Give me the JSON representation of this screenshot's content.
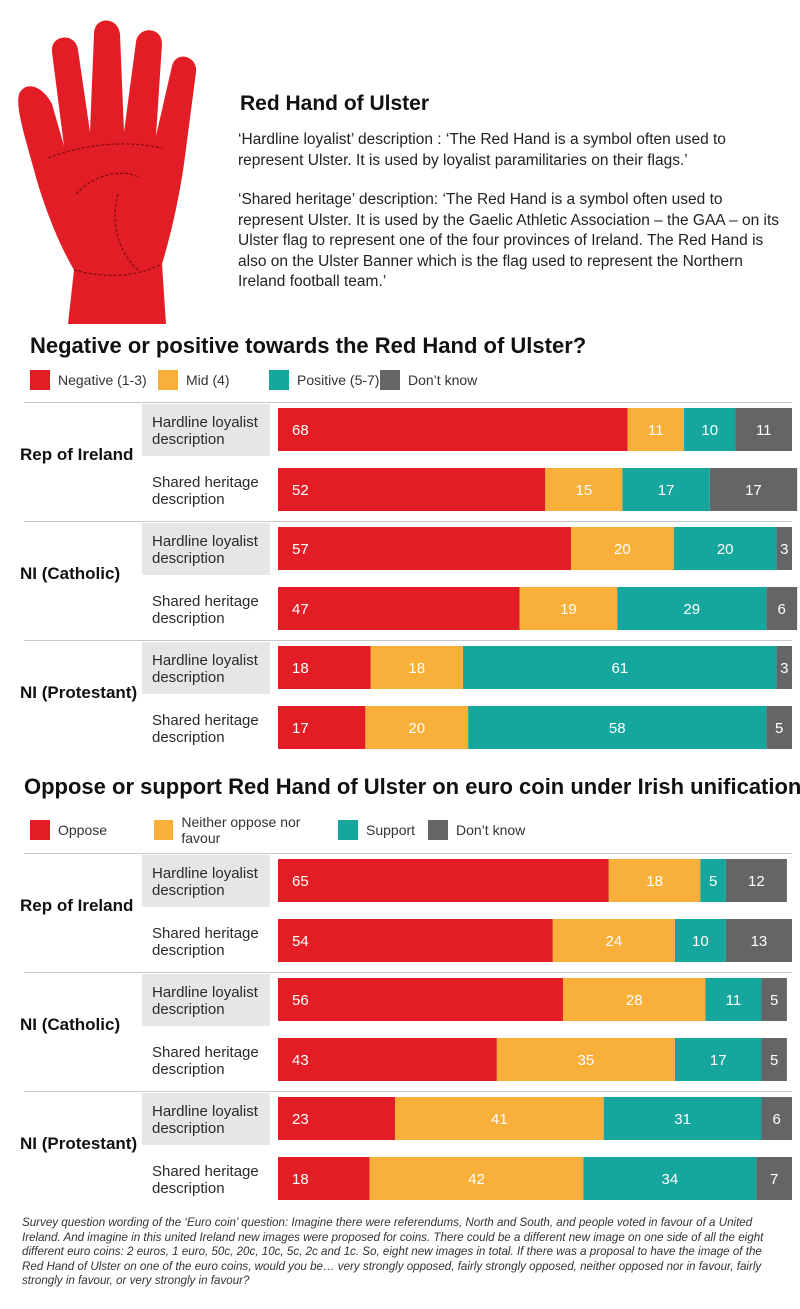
{
  "header": {
    "title": "Red Hand of Ulster",
    "desc_hardline": "‘Hardline loyalist’ description : ‘The Red Hand is a symbol often used to represent Ulster. It is used by loyalist paramilitaries on their flags.’",
    "desc_shared": "‘Shared heritage’ description: ‘The Red Hand is a symbol often used to represent Ulster. It is used by the Gaelic Athletic Association – the GAA – on its Ulster flag to represent one of the four provinces of Ireland. The Red Hand is also on the Ulster Banner which is the flag used to represent the Northern Ireland football team.’"
  },
  "colors": {
    "red": "#e31d25",
    "orange": "#f8b03a",
    "teal": "#15a69e",
    "grey": "#646566",
    "hand": "#e31d25"
  },
  "chart_data": [
    {
      "type": "bar",
      "orientation": "horizontal-stacked",
      "title": "Negative or positive towards the Red Hand of Ulster?",
      "series": [
        {
          "name": "Negative (1-3)",
          "color": "#e31d25"
        },
        {
          "name": "Mid (4)",
          "color": "#f8b03a"
        },
        {
          "name": "Positive (5-7)",
          "color": "#15a69e"
        },
        {
          "name": "Don’t know",
          "color": "#646566"
        }
      ],
      "groups": [
        {
          "label": "Rep of Ireland",
          "rows": [
            {
              "label": [
                "Hardline loyalist",
                "description"
              ],
              "values": [
                68,
                11,
                10,
                11
              ]
            },
            {
              "label": [
                "Shared heritage",
                "description"
              ],
              "values": [
                52,
                15,
                17,
                17
              ]
            }
          ]
        },
        {
          "label": "NI (Catholic)",
          "rows": [
            {
              "label": [
                "Hardline loyalist",
                "description"
              ],
              "values": [
                57,
                20,
                20,
                3
              ]
            },
            {
              "label": [
                "Shared heritage",
                "description"
              ],
              "values": [
                47,
                19,
                29,
                6
              ]
            }
          ]
        },
        {
          "label": "NI (Protestant)",
          "rows": [
            {
              "label": [
                "Hardline loyalist",
                "description"
              ],
              "values": [
                18,
                18,
                61,
                3
              ]
            },
            {
              "label": [
                "Shared heritage",
                "description"
              ],
              "values": [
                17,
                20,
                58,
                5
              ]
            }
          ]
        }
      ],
      "xlim": [
        0,
        100
      ]
    },
    {
      "type": "bar",
      "orientation": "horizontal-stacked",
      "title": "Oppose or support Red Hand of Ulster on euro coin under Irish unification?",
      "series": [
        {
          "name": "Oppose",
          "color": "#e31d25"
        },
        {
          "name": "Neither oppose nor favour",
          "color": "#f8b03a"
        },
        {
          "name": "Support",
          "color": "#15a69e"
        },
        {
          "name": "Don’t know",
          "color": "#646566"
        }
      ],
      "groups": [
        {
          "label": "Rep of Ireland",
          "rows": [
            {
              "label": [
                "Hardline loyalist",
                "description"
              ],
              "values": [
                65,
                18,
                5,
                12
              ]
            },
            {
              "label": [
                "Shared heritage",
                "description"
              ],
              "values": [
                54,
                24,
                10,
                13
              ]
            }
          ]
        },
        {
          "label": "NI (Catholic)",
          "rows": [
            {
              "label": [
                "Hardline loyalist",
                "description"
              ],
              "values": [
                56,
                28,
                11,
                5
              ]
            },
            {
              "label": [
                "Shared heritage",
                "description"
              ],
              "values": [
                43,
                35,
                17,
                5
              ]
            }
          ]
        },
        {
          "label": "NI (Protestant)",
          "rows": [
            {
              "label": [
                "Hardline loyalist",
                "description"
              ],
              "values": [
                23,
                41,
                31,
                6
              ]
            },
            {
              "label": [
                "Shared heritage",
                "description"
              ],
              "values": [
                18,
                42,
                34,
                7
              ]
            }
          ]
        }
      ],
      "xlim": [
        0,
        101
      ]
    }
  ],
  "footnote": "Survey question wording of the ‘Euro coin’ question: Imagine there were referendums, North and South, and people voted in favour of a United Ireland. And imagine in this united Ireland new images were proposed for coins. There could be a different new image on one side of all the eight different euro coins: 2 euros, 1 euro, 50c, 20c, 10c, 5c, 2c and 1c. So, eight new images in total. If there was a proposal to have the image of the Red Hand of Ulster on one of the euro coins, would you be… very strongly opposed, fairly strongly opposed, neither opposed nor in favour, fairly strongly in favour, or very strongly in favour?"
}
